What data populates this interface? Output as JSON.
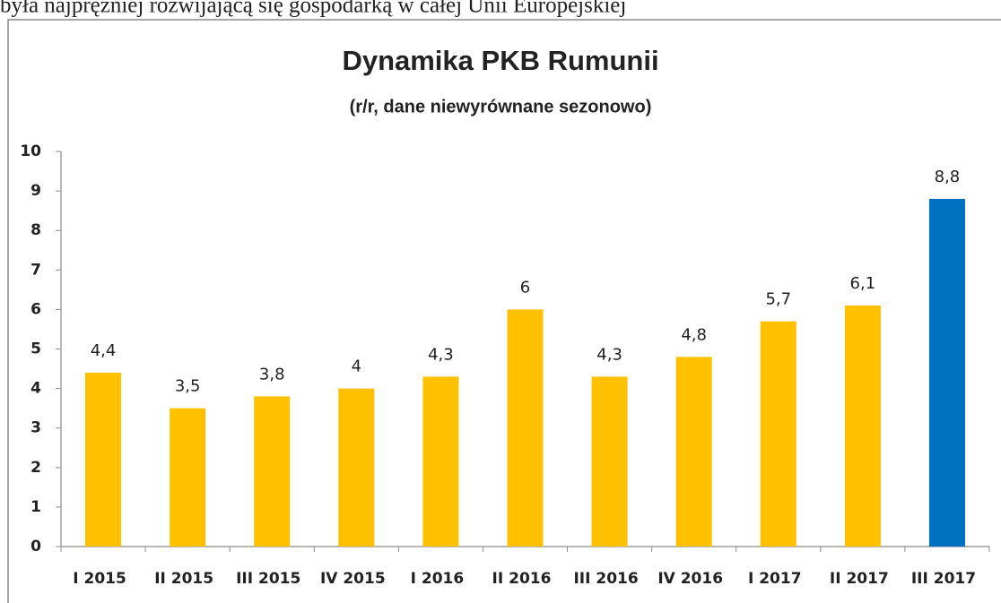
{
  "context_text": "była najprężniej rozwijającą się gospodarką w całej Unii Europejskiej",
  "chart_data": {
    "type": "bar",
    "title": "Dynamika PKB Rumunii",
    "subtitle": "(r/r, dane niewyrównane sezonowo)",
    "categories": [
      "I 2015",
      "II 2015",
      "III 2015",
      "IV 2015",
      "I 2016",
      "II 2016",
      "III 2016",
      "IV 2016",
      "I 2017",
      "II 2017",
      "III 2017"
    ],
    "values": [
      4.4,
      3.5,
      3.8,
      4,
      4.3,
      6,
      4.3,
      4.8,
      5.7,
      6.1,
      8.8
    ],
    "value_labels": [
      "4,4",
      "3,5",
      "3,8",
      "4",
      "4,3",
      "6",
      "4,3",
      "4,8",
      "5,7",
      "6,1",
      "8,8"
    ],
    "colors": [
      "#FFC000",
      "#FFC000",
      "#FFC000",
      "#FFC000",
      "#FFC000",
      "#FFC000",
      "#FFC000",
      "#FFC000",
      "#FFC000",
      "#FFC000",
      "#0070C0"
    ],
    "ylim": [
      0,
      10
    ],
    "yticks": [
      0,
      1,
      2,
      3,
      4,
      5,
      6,
      7,
      8,
      9,
      10
    ],
    "grid": false
  }
}
